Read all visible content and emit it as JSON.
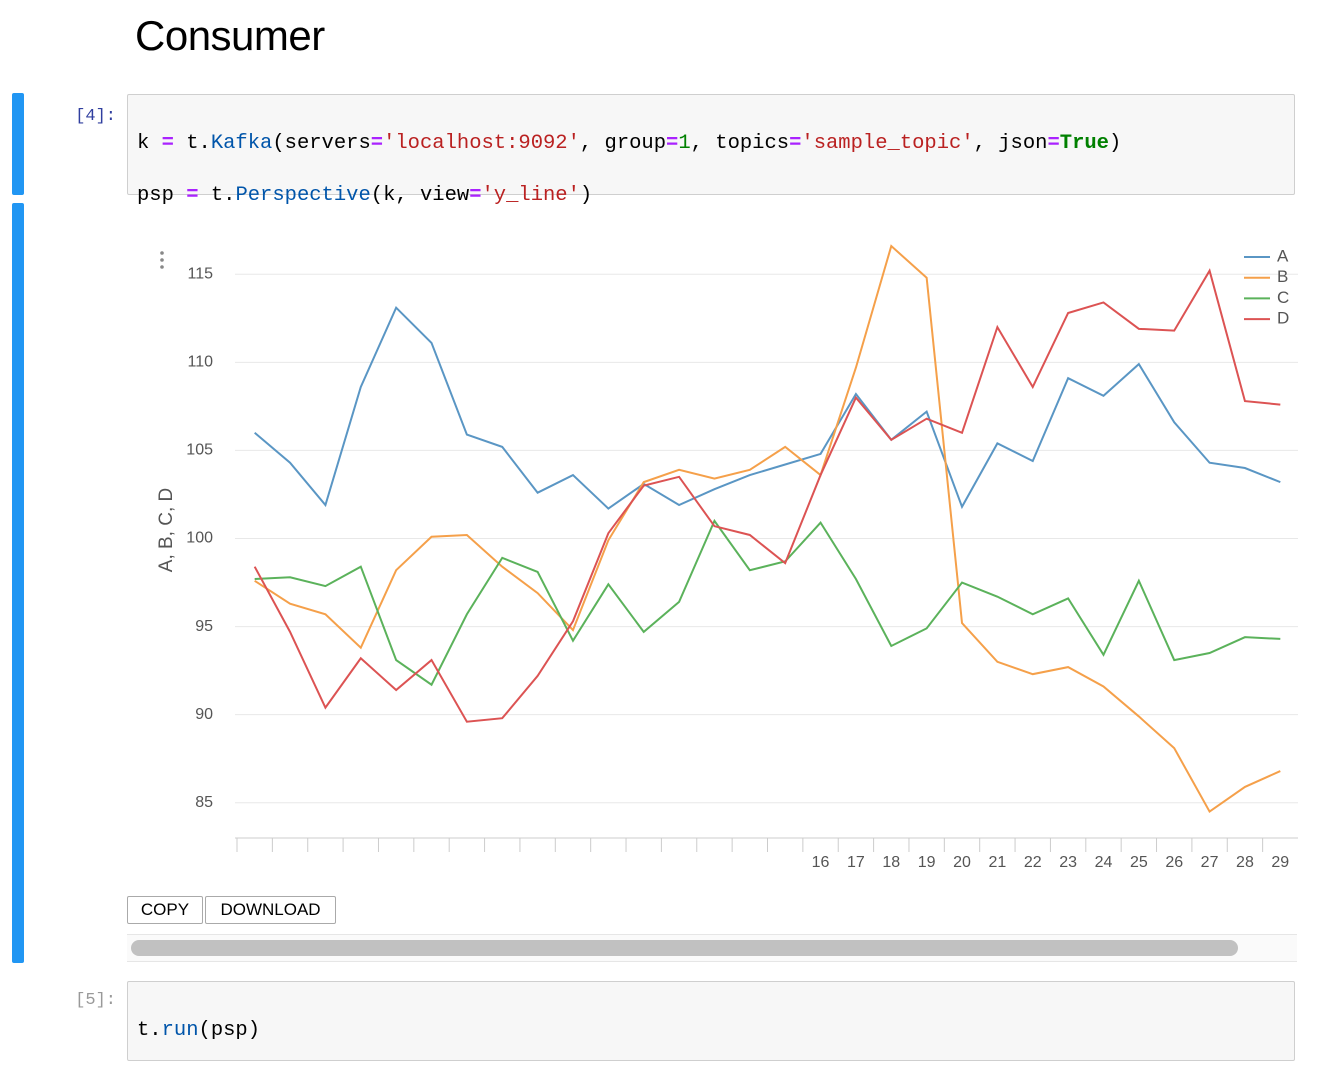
{
  "header": {
    "title": "Consumer"
  },
  "cells": [
    {
      "prompt": "[4]:",
      "code": [
        [
          "k ",
          "=",
          " t.",
          "Kafka",
          "(servers",
          "=",
          "'localhost:9092'",
          ", group",
          "=",
          "1",
          ", topics",
          "=",
          "'sample_topic'",
          ", json",
          "=",
          "True",
          ")"
        ],
        [
          "psp ",
          "=",
          " t.",
          "Perspective",
          "(k, view",
          "=",
          "'y_line'",
          ")"
        ]
      ],
      "buttons": [
        "COPY",
        "DOWNLOAD"
      ]
    },
    {
      "prompt": "[5]:",
      "code": [
        [
          "t.",
          "run",
          "(psp)"
        ]
      ]
    }
  ],
  "chart_data": {
    "type": "line",
    "y_label": "A, B, C, D",
    "categories": [
      null,
      null,
      null,
      null,
      null,
      null,
      null,
      null,
      null,
      null,
      null,
      null,
      null,
      null,
      null,
      null,
      "16",
      "17",
      "18",
      "19",
      "20",
      "21",
      "22",
      "23",
      "24",
      "25",
      "26",
      "27",
      "28",
      "29"
    ],
    "series": [
      {
        "name": "A",
        "color": "#5a96c4",
        "values": [
          106.0,
          104.3,
          101.9,
          108.6,
          113.1,
          111.1,
          105.9,
          105.2,
          102.6,
          103.6,
          101.7,
          103.1,
          101.9,
          102.8,
          103.6,
          104.2,
          104.8,
          108.2,
          105.6,
          107.2,
          101.8,
          105.4,
          104.4,
          109.1,
          108.1,
          109.9,
          106.6,
          104.3,
          104.0,
          103.2
        ]
      },
      {
        "name": "B",
        "color": "#f5a04a",
        "values": [
          97.6,
          96.3,
          95.7,
          93.8,
          98.2,
          100.1,
          100.2,
          98.4,
          96.9,
          94.8,
          99.9,
          103.2,
          103.9,
          103.4,
          103.9,
          105.2,
          103.6,
          109.7,
          116.6,
          114.8,
          95.2,
          93.0,
          92.3,
          92.7,
          91.6,
          89.9,
          88.1,
          84.5,
          85.9,
          86.8
        ]
      },
      {
        "name": "C",
        "color": "#5bb25b",
        "values": [
          97.7,
          97.8,
          97.3,
          98.4,
          93.1,
          91.7,
          95.7,
          98.9,
          98.1,
          94.2,
          97.4,
          94.7,
          96.4,
          101.0,
          98.2,
          98.7,
          100.9,
          97.7,
          93.9,
          94.9,
          97.5,
          96.7,
          95.7,
          96.6,
          93.4,
          97.6,
          93.1,
          93.5,
          94.4,
          94.3
        ]
      },
      {
        "name": "D",
        "color": "#dc5353",
        "values": [
          98.4,
          94.7,
          90.4,
          93.2,
          91.4,
          93.1,
          89.6,
          89.8,
          92.2,
          95.3,
          100.3,
          103.0,
          103.5,
          100.7,
          100.2,
          98.6,
          103.6,
          108.0,
          105.6,
          106.8,
          106.0,
          112.0,
          108.6,
          112.8,
          113.4,
          111.9,
          111.8,
          115.2,
          107.8,
          107.6
        ]
      }
    ],
    "ylim": [
      83,
      117
    ],
    "yticks": [
      85,
      90,
      95,
      100,
      105,
      110,
      115
    ],
    "grid": true,
    "legend": "top-right"
  }
}
